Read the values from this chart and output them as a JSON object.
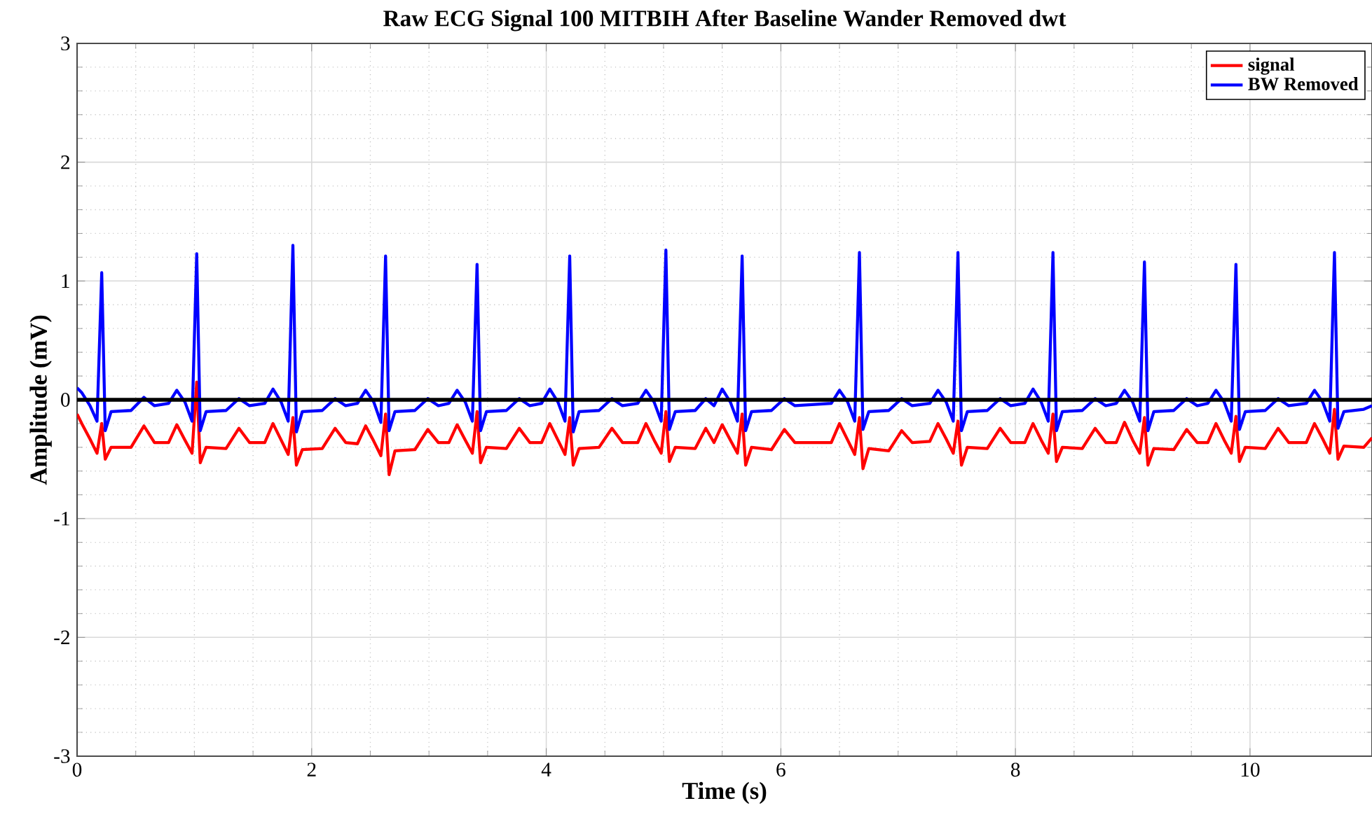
{
  "chart_data": {
    "type": "line",
    "title": "Raw ECG Signal 100 MITBIH After Baseline Wander Removed dwt",
    "xlabel": "Time (s)",
    "ylabel": "Amplitude (mV)",
    "xlim": [
      0,
      11.04
    ],
    "ylim": [
      -3,
      3
    ],
    "xticks": [
      0,
      2,
      4,
      6,
      8,
      10
    ],
    "yticks": [
      -3,
      -2,
      -1,
      0,
      1,
      2,
      3
    ],
    "grid": true,
    "legend": "top right",
    "line_style": "solid",
    "ref_lines": [
      {
        "axis": "y",
        "value": 0,
        "color": "#000000"
      }
    ],
    "x": [
      0,
      0.04,
      0.11,
      0.17,
      0.21,
      0.24,
      0.29,
      0.46,
      0.57,
      0.66,
      0.78,
      0.85,
      0.92,
      0.98,
      1.02,
      1.05,
      1.1,
      1.27,
      1.38,
      1.47,
      1.6,
      1.67,
      1.74,
      1.8,
      1.84,
      1.87,
      1.92,
      2.09,
      2.2,
      2.29,
      2.39,
      2.46,
      2.53,
      2.59,
      2.63,
      2.66,
      2.71,
      2.88,
      2.99,
      3.08,
      3.17,
      3.24,
      3.31,
      3.37,
      3.41,
      3.44,
      3.49,
      3.66,
      3.77,
      3.86,
      3.96,
      4.03,
      4.1,
      4.16,
      4.2,
      4.23,
      4.28,
      4.45,
      4.56,
      4.65,
      4.78,
      4.85,
      4.92,
      4.98,
      5.02,
      5.05,
      5.1,
      5.27,
      5.36,
      5.43,
      5.5,
      5.57,
      5.63,
      5.67,
      5.7,
      5.75,
      5.92,
      6.03,
      6.12,
      6.43,
      6.5,
      6.57,
      6.63,
      6.67,
      6.7,
      6.75,
      6.92,
      7.03,
      7.12,
      7.27,
      7.34,
      7.41,
      7.47,
      7.51,
      7.54,
      7.59,
      7.76,
      7.87,
      7.96,
      8.08,
      8.15,
      8.22,
      8.28,
      8.32,
      8.35,
      8.4,
      8.57,
      8.68,
      8.77,
      8.86,
      8.93,
      9.0,
      9.06,
      9.1,
      9.13,
      9.18,
      9.35,
      9.46,
      9.55,
      9.64,
      9.71,
      9.78,
      9.84,
      9.88,
      9.91,
      9.96,
      10.13,
      10.24,
      10.33,
      10.48,
      10.55,
      10.62,
      10.68,
      10.72,
      10.75,
      10.8,
      10.97,
      11.04
    ],
    "series": [
      {
        "name": "signal",
        "color": "#ff0000",
        "values": [
          -0.12,
          -0.2,
          -0.33,
          -0.45,
          -0.2,
          -0.5,
          -0.4,
          -0.4,
          -0.22,
          -0.36,
          -0.36,
          -0.21,
          -0.34,
          -0.45,
          0.15,
          -0.53,
          -0.4,
          -0.41,
          -0.24,
          -0.36,
          -0.36,
          -0.2,
          -0.34,
          -0.46,
          -0.15,
          -0.55,
          -0.42,
          -0.41,
          -0.24,
          -0.36,
          -0.37,
          -0.22,
          -0.35,
          -0.47,
          -0.12,
          -0.63,
          -0.43,
          -0.42,
          -0.25,
          -0.36,
          -0.36,
          -0.21,
          -0.34,
          -0.45,
          -0.1,
          -0.53,
          -0.4,
          -0.41,
          -0.24,
          -0.36,
          -0.36,
          -0.2,
          -0.34,
          -0.46,
          -0.15,
          -0.55,
          -0.41,
          -0.4,
          -0.24,
          -0.36,
          -0.36,
          -0.2,
          -0.34,
          -0.45,
          -0.1,
          -0.52,
          -0.4,
          -0.41,
          -0.24,
          -0.36,
          -0.21,
          -0.34,
          -0.45,
          -0.12,
          -0.55,
          -0.4,
          -0.42,
          -0.25,
          -0.36,
          -0.36,
          -0.2,
          -0.34,
          -0.46,
          -0.15,
          -0.58,
          -0.41,
          -0.43,
          -0.26,
          -0.36,
          -0.35,
          -0.2,
          -0.33,
          -0.45,
          -0.18,
          -0.55,
          -0.4,
          -0.41,
          -0.24,
          -0.36,
          -0.36,
          -0.2,
          -0.34,
          -0.45,
          -0.12,
          -0.52,
          -0.4,
          -0.41,
          -0.24,
          -0.36,
          -0.36,
          -0.19,
          -0.34,
          -0.45,
          -0.15,
          -0.55,
          -0.41,
          -0.42,
          -0.25,
          -0.36,
          -0.36,
          -0.2,
          -0.34,
          -0.45,
          -0.14,
          -0.52,
          -0.4,
          -0.41,
          -0.24,
          -0.36,
          -0.36,
          -0.2,
          -0.33,
          -0.45,
          -0.08,
          -0.5,
          -0.39,
          -0.4,
          -0.32
        ]
      },
      {
        "name": "BW Removed",
        "color": "#0000ff",
        "values": [
          0.1,
          0.06,
          -0.05,
          -0.18,
          1.07,
          -0.26,
          -0.1,
          -0.09,
          0.02,
          -0.05,
          -0.03,
          0.08,
          -0.02,
          -0.18,
          1.23,
          -0.26,
          -0.1,
          -0.09,
          0.01,
          -0.05,
          -0.03,
          0.09,
          -0.02,
          -0.18,
          1.3,
          -0.27,
          -0.1,
          -0.09,
          0.01,
          -0.05,
          -0.03,
          0.08,
          -0.02,
          -0.19,
          1.21,
          -0.26,
          -0.1,
          -0.09,
          0.01,
          -0.05,
          -0.03,
          0.08,
          -0.02,
          -0.18,
          1.14,
          -0.26,
          -0.1,
          -0.09,
          0.01,
          -0.05,
          -0.03,
          0.09,
          -0.02,
          -0.18,
          1.21,
          -0.27,
          -0.1,
          -0.09,
          0.01,
          -0.05,
          -0.03,
          0.08,
          -0.02,
          -0.18,
          1.26,
          -0.25,
          -0.1,
          -0.09,
          0.01,
          -0.05,
          0.09,
          -0.02,
          -0.18,
          1.21,
          -0.26,
          -0.1,
          -0.09,
          0.01,
          -0.05,
          -0.03,
          0.08,
          -0.02,
          -0.18,
          1.24,
          -0.25,
          -0.1,
          -0.09,
          0.01,
          -0.05,
          -0.03,
          0.08,
          -0.02,
          -0.18,
          1.24,
          -0.26,
          -0.1,
          -0.09,
          0.01,
          -0.05,
          -0.03,
          0.09,
          -0.02,
          -0.18,
          1.24,
          -0.26,
          -0.1,
          -0.09,
          0.01,
          -0.05,
          -0.03,
          0.08,
          -0.02,
          -0.18,
          1.16,
          -0.26,
          -0.1,
          -0.09,
          0.01,
          -0.05,
          -0.03,
          0.08,
          -0.02,
          -0.18,
          1.14,
          -0.25,
          -0.1,
          -0.09,
          0.01,
          -0.05,
          -0.03,
          0.08,
          -0.02,
          -0.18,
          1.24,
          -0.24,
          -0.1,
          -0.08,
          -0.05
        ]
      }
    ]
  }
}
